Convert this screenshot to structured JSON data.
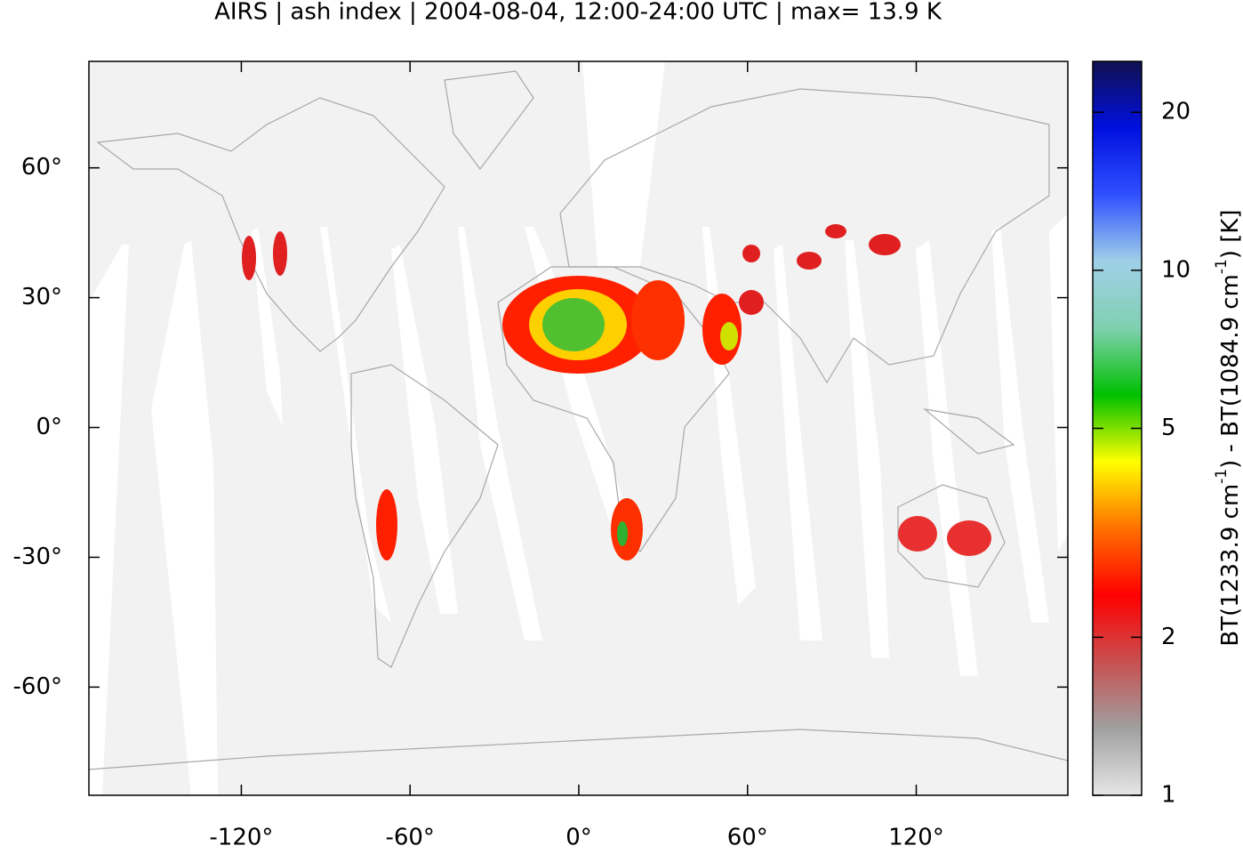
{
  "chart_data": {
    "type": "map",
    "title": "AIRS | ash index | 2004-08-04, 12:00-24:00 UTC | max= 13.9 K",
    "xlim": [
      -174.2,
      173.9
    ],
    "ylim": [
      -85,
      84.6
    ],
    "xticks": [
      {
        "value": -120,
        "label": "-120°"
      },
      {
        "value": -60,
        "label": "-60°"
      },
      {
        "value": 0,
        "label": "0°"
      },
      {
        "value": 60,
        "label": "60°"
      },
      {
        "value": 120,
        "label": "120°"
      }
    ],
    "yticks": [
      {
        "value": 60,
        "label": "60°"
      },
      {
        "value": 30,
        "label": "30°"
      },
      {
        "value": 0,
        "label": "0°"
      },
      {
        "value": -30,
        "label": "-30°"
      },
      {
        "value": -60,
        "label": "-60°"
      }
    ],
    "colorbar": {
      "label": [
        "BT(1233.9 cm",
        "-1",
        ") - BT(1084.9 cm",
        "-1",
        ") [K]"
      ],
      "zlim": [
        1,
        25
      ],
      "zscale": "log",
      "zticks": [
        1,
        2,
        5,
        10,
        20
      ],
      "colormap": [
        "#e6e6e6",
        "#a0a0a0",
        "#c85050",
        "#ff0000",
        "#ff7000",
        "#ffff00",
        "#00c000",
        "#80d0b0",
        "#a0d0e8",
        "#3050ff",
        "#0010e0",
        "#101050"
      ]
    }
  }
}
